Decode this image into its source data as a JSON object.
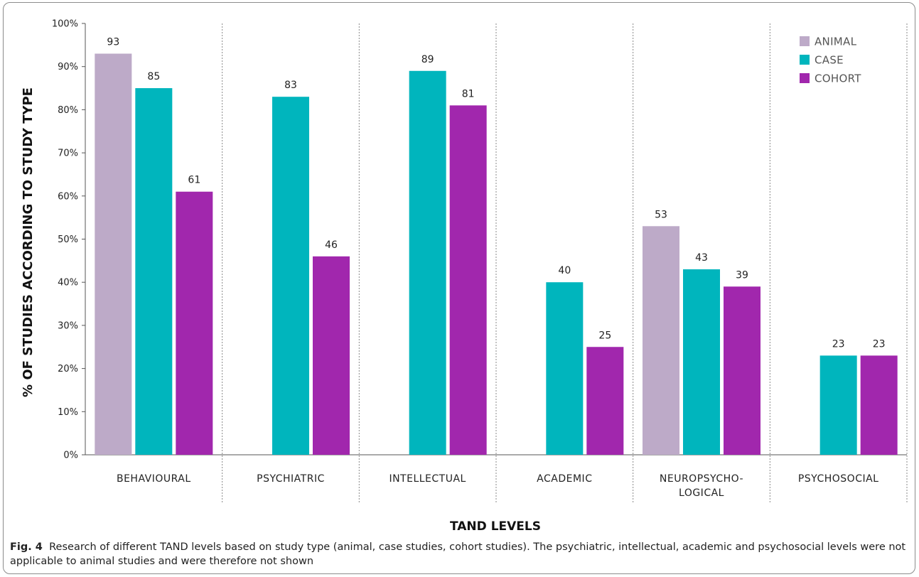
{
  "chart_data": {
    "type": "bar",
    "categories": [
      "BEHAVIOURAL",
      "PSYCHIATRIC",
      "INTELLECTUAL",
      "ACADEMIC",
      "NEUROPSYCHO- LOGICAL",
      "PSYCHOSOCIAL"
    ],
    "series": [
      {
        "name": "ANIMAL",
        "color": "#bdaac8",
        "values": [
          93,
          null,
          null,
          null,
          53,
          null
        ]
      },
      {
        "name": "CASE",
        "color": "#00b5bd",
        "values": [
          85,
          83,
          89,
          40,
          43,
          23
        ]
      },
      {
        "name": "COHORT",
        "color": "#a127ad",
        "values": [
          61,
          46,
          81,
          25,
          39,
          23
        ]
      }
    ],
    "xlabel": "TAND LEVELS",
    "ylabel": "% OF STUDIES ACCORDING TO STUDY TYPE",
    "ylim": [
      0,
      100
    ],
    "yticks": [
      "0%",
      "10%",
      "20%",
      "30%",
      "40%",
      "50%",
      "60%",
      "70%",
      "80%",
      "90%",
      "100%"
    ],
    "legend_position": "top-right",
    "grid": false,
    "category_separators": "dotted"
  },
  "caption": {
    "label": "Fig. 4",
    "text": "Research of different TAND levels based on study type (animal, case studies, cohort studies). The psychiatric, intellectual, academic and psychosocial levels were not applicable to animal studies and were therefore not shown"
  }
}
